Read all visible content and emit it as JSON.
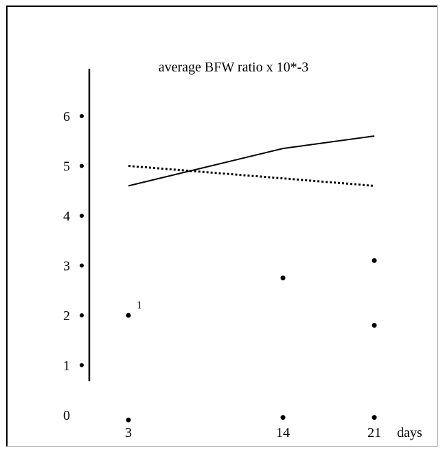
{
  "chart_data": {
    "type": "line",
    "title": "average BFW ratio x 10*-3",
    "xlabel": "days",
    "ylabel": "",
    "x": [
      3,
      14,
      21
    ],
    "x_tick_labels": [
      "3",
      "14",
      "21"
    ],
    "y_tick_labels": [
      "0",
      "1",
      "2",
      "3",
      "4",
      "5",
      "6"
    ],
    "y_ticks": [
      0,
      1,
      2,
      3,
      4,
      5,
      6
    ],
    "ylim": [
      0,
      6.7
    ],
    "series": [
      {
        "style": "solid",
        "color": "#000000",
        "values": [
          4.6,
          5.35,
          5.6
        ]
      },
      {
        "style": "dotted",
        "color": "#000000",
        "values": [
          5.0,
          4.75,
          4.6
        ]
      }
    ],
    "points": [
      {
        "x": 3,
        "y": 2.0
      },
      {
        "x": 14,
        "y": 2.75
      },
      {
        "x": 21,
        "y": 3.1
      },
      {
        "x": 21,
        "y": 1.8
      },
      {
        "x": 3,
        "y": -0.1
      },
      {
        "x": 14,
        "y": -0.05
      },
      {
        "x": 21,
        "y": -0.05
      }
    ],
    "annotations": [
      {
        "text": "1",
        "near_x": 3,
        "near_y": 2.0
      }
    ],
    "grid": false,
    "legend": "none"
  }
}
